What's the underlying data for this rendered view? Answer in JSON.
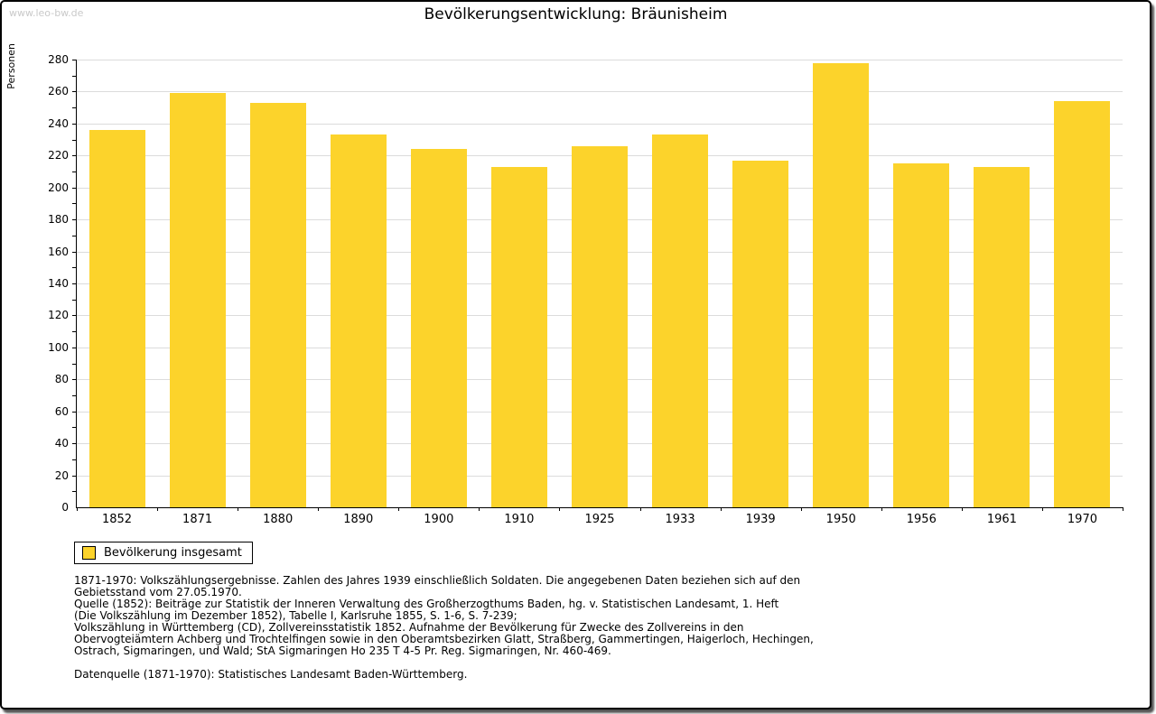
{
  "watermark": "www.leo-bw.de",
  "title": "Bevölkerungsentwicklung: Bräunisheim",
  "chart_data": {
    "type": "bar",
    "title": "Bevölkerungsentwicklung: Bräunisheim",
    "ylabel": "Personen",
    "xlabel": "",
    "categories": [
      "1852",
      "1871",
      "1880",
      "1890",
      "1900",
      "1910",
      "1925",
      "1933",
      "1939",
      "1950",
      "1956",
      "1961",
      "1970"
    ],
    "values": [
      236,
      259,
      253,
      233,
      224,
      213,
      226,
      233,
      217,
      278,
      215,
      213,
      254
    ],
    "ylim": [
      0,
      280
    ],
    "ytick_major": 20,
    "ytick_minor": 10,
    "grid": "horizontal-major",
    "legend_position": "bottom-left",
    "legend_entries": [
      "Bevölkerung insgesamt"
    ],
    "bar_color": "#FCD32B",
    "grid_color": "#DCDCDC",
    "axis_color": "#000000"
  },
  "legend": {
    "label": "Bevölkerung insgesamt",
    "swatch_color": "#FCD32B"
  },
  "footnote_lines": [
    "1871-1970: Volkszählungsergebnisse. Zahlen des Jahres 1939 einschließlich Soldaten. Die angegebenen Daten beziehen sich auf den",
    "Gebietsstand vom 27.05.1970.",
    "Quelle (1852): Beiträge zur Statistik der Inneren Verwaltung des Großherzogthums Baden, hg. v. Statistischen Landesamt, 1. Heft",
    "(Die Volkszählung im Dezember 1852), Tabelle I, Karlsruhe 1855, S. 1-6, S. 7-239;",
    "Volkszählung in Württemberg (CD), Zollvereinsstatistik 1852. Aufnahme der Bevölkerung für Zwecke des Zollvereins in den",
    "Obervogteiämtern Achberg und Trochtelfingen sowie in den Oberamtsbezirken Glatt, Straßberg, Gammertingen, Haigerloch, Hechingen,",
    "Ostrach, Sigmaringen, und Wald; StA Sigmaringen Ho 235 T 4-5 Pr. Reg. Sigmaringen, Nr. 460-469.",
    "",
    "Datenquelle (1871-1970): Statistisches Landesamt Baden-Württemberg."
  ]
}
